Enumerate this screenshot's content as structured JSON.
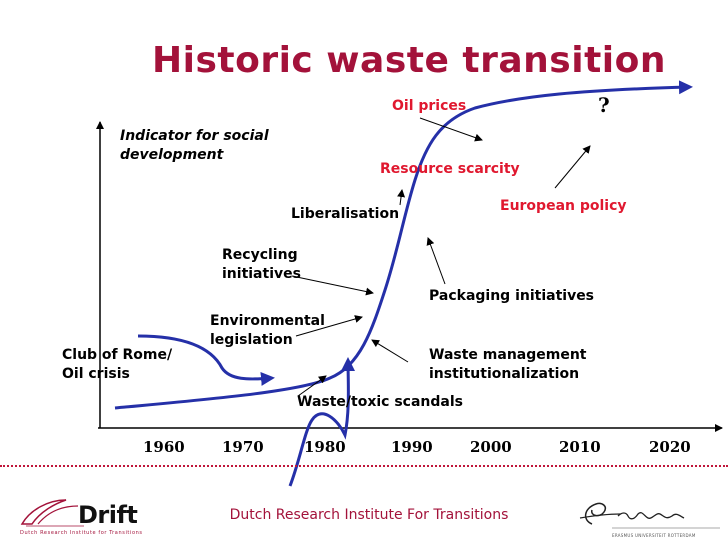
{
  "slide": {
    "title": "Historic waste transition",
    "y_axis_label_line1": "Indicator for social",
    "y_axis_label_line2": "development",
    "question_mark": "?",
    "x_ticks": [
      "1960",
      "1970",
      "1980",
      "1990",
      "2000",
      "2010",
      "2020"
    ],
    "annotations": {
      "oil_prices": "Oil prices",
      "resource_scarcity": "Resource scarcity",
      "european_policy": "European policy",
      "liberalisation": "Liberalisation",
      "recycling_line1": "Recycling",
      "recycling_line2": "initiatives",
      "packaging": "Packaging initiatives",
      "env_line1": "Environmental",
      "env_line2": "legislation",
      "club_line1": "Club of Rome/",
      "club_line2": "Oil crisis",
      "waste_mgmt_line1": "Waste management",
      "waste_mgmt_line2": "institutionalization",
      "waste_toxic": "Waste/toxic scandals"
    },
    "footer": "Dutch Research Institute For Transitions",
    "logos": {
      "drift_word": "Drift",
      "drift_sub": "Dutch Research Institute for Transitions",
      "erasmus_sub": "ERASMUS UNIVERSITEIT ROTTERDAM"
    },
    "colors": {
      "title": "#a3123a",
      "red_label": "#e0182f",
      "curve": "#2530a8",
      "axis": "#000000"
    }
  }
}
